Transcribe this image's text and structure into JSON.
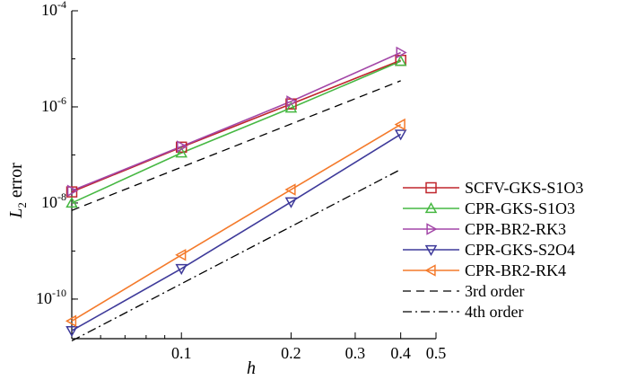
{
  "chart_data": {
    "type": "line",
    "xscale": "log",
    "yscale": "log",
    "xlabel": "h",
    "ylabel": "L2 error",
    "ylabel_main": "L",
    "ylabel_sub": "2",
    "ylabel_rest": " error",
    "xlim": [
      0.05,
      0.5
    ],
    "ylim": [
      1.5e-11,
      0.0001
    ],
    "x_ticks": [
      {
        "value": 0.1,
        "label": "0.1"
      },
      {
        "value": 0.2,
        "label": "0.2"
      },
      {
        "value": 0.3,
        "label": "0.3"
      },
      {
        "value": 0.4,
        "label": "0.4"
      },
      {
        "value": 0.5,
        "label": "0.5"
      }
    ],
    "y_ticks": [
      {
        "value": 0.0001,
        "base": "10",
        "exp": "-4"
      },
      {
        "value": 1e-06,
        "base": "10",
        "exp": "-6"
      },
      {
        "value": 1e-08,
        "base": "10",
        "exp": "-8"
      },
      {
        "value": 1e-10,
        "base": "10",
        "exp": "-10"
      }
    ],
    "series": [
      {
        "name": "SCFV-GKS-S1O3",
        "color": "#c0262d",
        "marker": "square",
        "x": [
          0.05,
          0.1,
          0.2,
          0.4
        ],
        "y": [
          1.7e-08,
          1.45e-07,
          1.15e-06,
          9.3e-06
        ]
      },
      {
        "name": "CPR-GKS-S1O3",
        "color": "#47b843",
        "marker": "triangle-up",
        "x": [
          0.05,
          0.1,
          0.2,
          0.4
        ],
        "y": [
          1e-08,
          1.1e-07,
          9.5e-07,
          8.9e-06
        ]
      },
      {
        "name": "CPR-BR2-RK3",
        "color": "#a347a8",
        "marker": "triangle-right",
        "x": [
          0.05,
          0.1,
          0.2,
          0.4
        ],
        "y": [
          1.8e-08,
          1.5e-07,
          1.3e-06,
          1.35e-05
        ]
      },
      {
        "name": "CPR-GKS-S2O4",
        "color": "#3e3a9a",
        "marker": "triangle-down",
        "x": [
          0.05,
          0.1,
          0.2,
          0.4
        ],
        "y": [
          2.2e-11,
          4.3e-10,
          1.05e-08,
          2.7e-07
        ]
      },
      {
        "name": "CPR-BR2-RK4",
        "color": "#f47a2b",
        "marker": "triangle-left",
        "x": [
          0.05,
          0.1,
          0.2,
          0.4
        ],
        "y": [
          3.5e-11,
          8.3e-10,
          1.9e-08,
          4.3e-07
        ]
      }
    ],
    "reference_lines": [
      {
        "name": "3rd order",
        "dash": "dashed",
        "x": [
          0.05,
          0.4
        ],
        "y": [
          7e-09,
          3.5e-06
        ]
      },
      {
        "name": "4th order",
        "dash": "dashdot",
        "x": [
          0.05,
          0.4
        ],
        "y": [
          1.35e-11,
          5e-08
        ]
      }
    ],
    "legend_position": "right"
  }
}
